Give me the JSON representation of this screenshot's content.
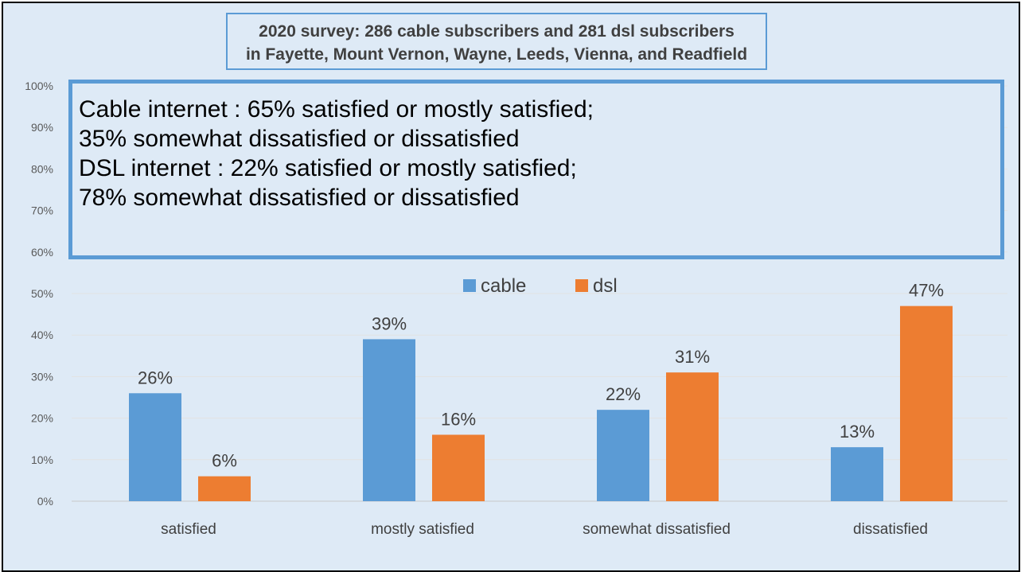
{
  "title_lines": [
    "2020 survey: 286 cable subscribers and 281 dsl subscribers",
    "in Fayette, Mount Vernon, Wayne, Leeds, Vienna, and Readfield"
  ],
  "summary_lines": [
    "Cable internet : 65% satisfied or mostly satisfied;",
    "35% somewhat dissatisfied or dissatisfied",
    "DSL internet : 22% satisfied or mostly satisfied;",
    "78% somewhat dissatisfied or dissatisfied"
  ],
  "colors": {
    "cable": "#5b9bd5",
    "dsl": "#ed7d31",
    "background": "#deeaf6"
  },
  "chart_data": {
    "type": "bar",
    "title": "2020 survey: 286 cable subscribers and 281 dsl subscribers in Fayette, Mount Vernon, Wayne, Leeds, Vienna, and Readfield",
    "categories": [
      "satisfied",
      "mostly satisfied",
      "somewhat dissatisfied",
      "dissatisfied"
    ],
    "series": [
      {
        "name": "cable",
        "values": [
          26,
          39,
          22,
          13
        ],
        "labels": [
          "26%",
          "39%",
          "22%",
          "13%"
        ]
      },
      {
        "name": "dsl",
        "values": [
          6,
          16,
          31,
          47
        ],
        "labels": [
          "6%",
          "16%",
          "31%",
          "47%"
        ]
      }
    ],
    "y_ticks": [
      "0%",
      "10%",
      "20%",
      "30%",
      "40%",
      "50%",
      "60%",
      "70%",
      "80%",
      "90%",
      "100%"
    ],
    "ylim": [
      0,
      100
    ],
    "xlabel": "",
    "ylabel": "",
    "grid": true,
    "legend": "top-center"
  }
}
